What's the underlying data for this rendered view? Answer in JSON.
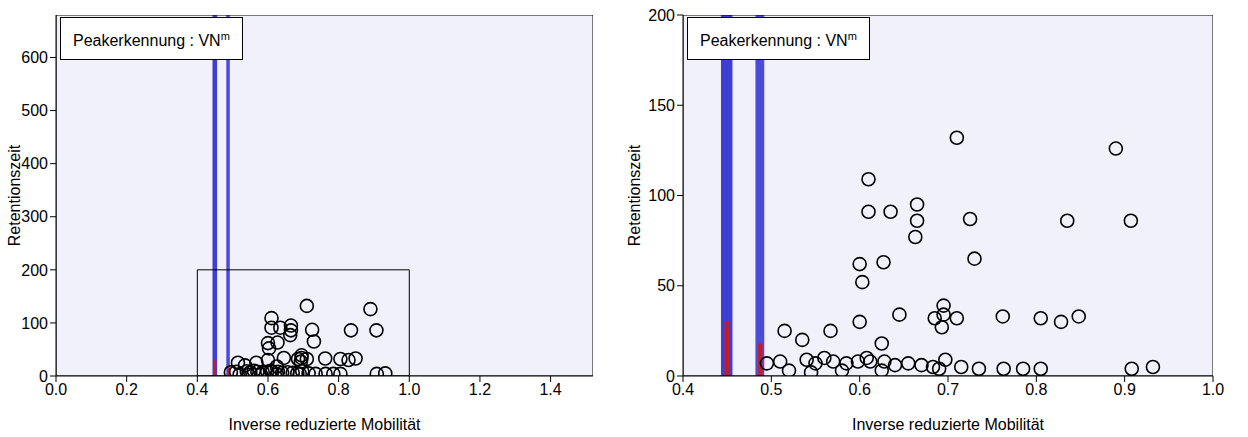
{
  "chart_data": [
    {
      "type": "scatter",
      "annotation": "Peakerkennung : VN",
      "annotation_superscript": "m",
      "x_label": "Inverse reduzierte Mobilität",
      "y_label": "Retentionszeit",
      "xlim": [
        0,
        1.52
      ],
      "ylim": [
        0,
        680
      ],
      "xticks": [
        {
          "value": 0,
          "label": "0.0"
        },
        0.2,
        0.4,
        0.6,
        0.8,
        {
          "value": 1,
          "label": "1.0"
        },
        1.2,
        1.4
      ],
      "yticks": [
        0,
        100,
        200,
        300,
        400,
        500,
        600
      ],
      "grid": false,
      "color": "#000000",
      "marker": "circle",
      "zoom_box": {
        "x": [
          0.4,
          1.0
        ],
        "y": [
          0,
          200
        ]
      },
      "signal_bands": [
        {
          "x": [
            0.443,
            0.456
          ],
          "y": [
            0,
            680
          ],
          "color": "#2a2ad0"
        },
        {
          "x": [
            0.447,
            0.453
          ],
          "y": [
            0,
            30
          ],
          "color": "#d01818"
        },
        {
          "x": [
            0.482,
            0.492
          ],
          "y": [
            0,
            680
          ],
          "color": "#3a3ad6"
        },
        {
          "x": [
            0.485,
            0.49
          ],
          "y": [
            0,
            18
          ],
          "color": "#d01818"
        }
      ],
      "x": [
        0.71,
        0.89,
        0.61,
        0.61,
        0.635,
        0.665,
        0.665,
        0.725,
        0.835,
        0.907,
        0.663,
        0.6,
        0.627,
        0.73,
        0.603,
        0.695,
        0.695,
        0.645,
        0.685,
        0.71,
        0.762,
        0.805,
        0.828,
        0.848,
        0.6,
        0.693,
        0.567,
        0.515,
        0.625,
        0.535,
        0.608,
        0.598,
        0.495,
        0.51,
        0.54,
        0.55,
        0.56,
        0.57,
        0.585,
        0.612,
        0.628,
        0.64,
        0.655,
        0.67,
        0.683,
        0.697,
        0.715,
        0.735,
        0.763,
        0.785,
        0.805,
        0.908,
        0.932,
        0.52,
        0.545,
        0.58,
        0.625,
        0.69
      ],
      "values": [
        132,
        126,
        109,
        91,
        91,
        95,
        86,
        87,
        86,
        86,
        77,
        62,
        63,
        65,
        52,
        39,
        34,
        34,
        32,
        32,
        33,
        32,
        30,
        33,
        30,
        27,
        25,
        25,
        18,
        20,
        10,
        8,
        7,
        8,
        9,
        7,
        10,
        8,
        7,
        8,
        8,
        6,
        7,
        6,
        5,
        9,
        5,
        4,
        4,
        4,
        4,
        4,
        5,
        3,
        2,
        3,
        3,
        4
      ]
    },
    {
      "type": "scatter",
      "annotation": "Peakerkennung : VN",
      "annotation_superscript": "m",
      "x_label": "Inverse reduzierte Mobilität",
      "y_label": "Retentionszeit",
      "xlim": [
        0.4,
        1.0
      ],
      "ylim": [
        0,
        200
      ],
      "xticks": [
        0.4,
        0.5,
        0.6,
        0.7,
        0.8,
        0.9,
        {
          "value": 1,
          "label": "1.0"
        }
      ],
      "yticks": [
        0,
        50,
        100,
        150,
        200
      ],
      "grid": false,
      "color": "#000000",
      "marker": "circle",
      "signal_bands": [
        {
          "x": [
            0.443,
            0.456
          ],
          "y": [
            0,
            680
          ],
          "color": "#2a2ad0"
        },
        {
          "x": [
            0.447,
            0.453
          ],
          "y": [
            0,
            30
          ],
          "color": "#d01818"
        },
        {
          "x": [
            0.482,
            0.492
          ],
          "y": [
            0,
            680
          ],
          "color": "#3a3ad6"
        },
        {
          "x": [
            0.485,
            0.49
          ],
          "y": [
            0,
            18
          ],
          "color": "#d01818"
        }
      ],
      "x": [
        0.71,
        0.89,
        0.61,
        0.61,
        0.635,
        0.665,
        0.665,
        0.725,
        0.835,
        0.907,
        0.663,
        0.6,
        0.627,
        0.73,
        0.603,
        0.695,
        0.695,
        0.645,
        0.685,
        0.71,
        0.762,
        0.805,
        0.828,
        0.848,
        0.6,
        0.693,
        0.567,
        0.515,
        0.625,
        0.535,
        0.608,
        0.598,
        0.495,
        0.51,
        0.54,
        0.55,
        0.56,
        0.57,
        0.585,
        0.612,
        0.628,
        0.64,
        0.655,
        0.67,
        0.683,
        0.697,
        0.715,
        0.735,
        0.763,
        0.785,
        0.805,
        0.908,
        0.932,
        0.52,
        0.545,
        0.58,
        0.625,
        0.69
      ],
      "values": [
        132,
        126,
        109,
        91,
        91,
        95,
        86,
        87,
        86,
        86,
        77,
        62,
        63,
        65,
        52,
        39,
        34,
        34,
        32,
        32,
        33,
        32,
        30,
        33,
        30,
        27,
        25,
        25,
        18,
        20,
        10,
        8,
        7,
        8,
        9,
        7,
        10,
        8,
        7,
        8,
        8,
        6,
        7,
        6,
        5,
        9,
        5,
        4,
        4,
        4,
        4,
        4,
        5,
        3,
        2,
        3,
        3,
        4
      ]
    }
  ]
}
